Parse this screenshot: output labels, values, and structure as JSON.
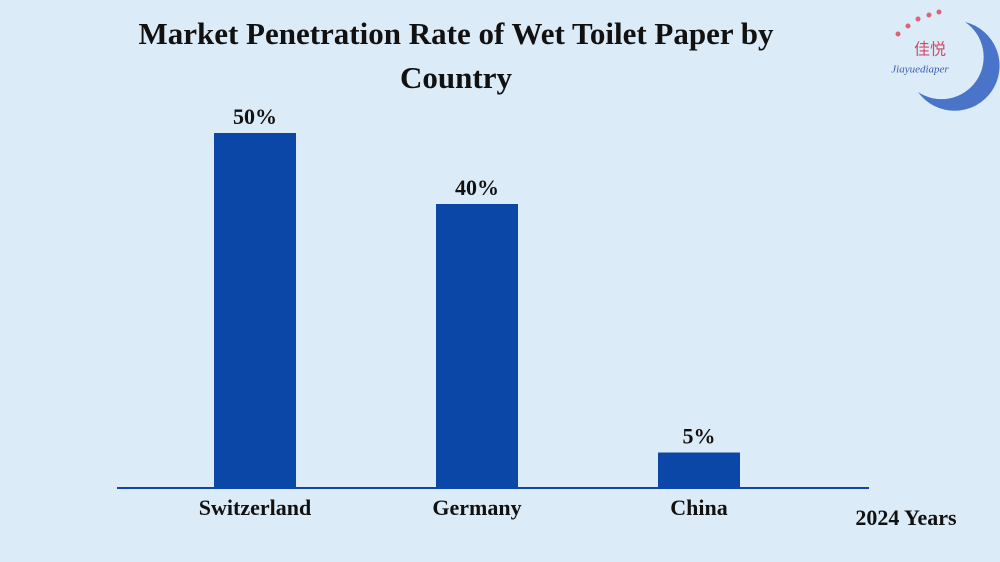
{
  "chart_data": {
    "type": "bar",
    "title": "Market Penetration Rate of Wet Toilet Paper by Country",
    "categories": [
      "Switzerland",
      "Germany",
      "China"
    ],
    "values": [
      50,
      40,
      5
    ],
    "value_labels": [
      "50%",
      "40%",
      "5%"
    ],
    "color": "#0a47a6",
    "annotation": "2024 Years"
  },
  "logo": {
    "text": "佳悦",
    "subtext": "Jiayuediaper"
  }
}
